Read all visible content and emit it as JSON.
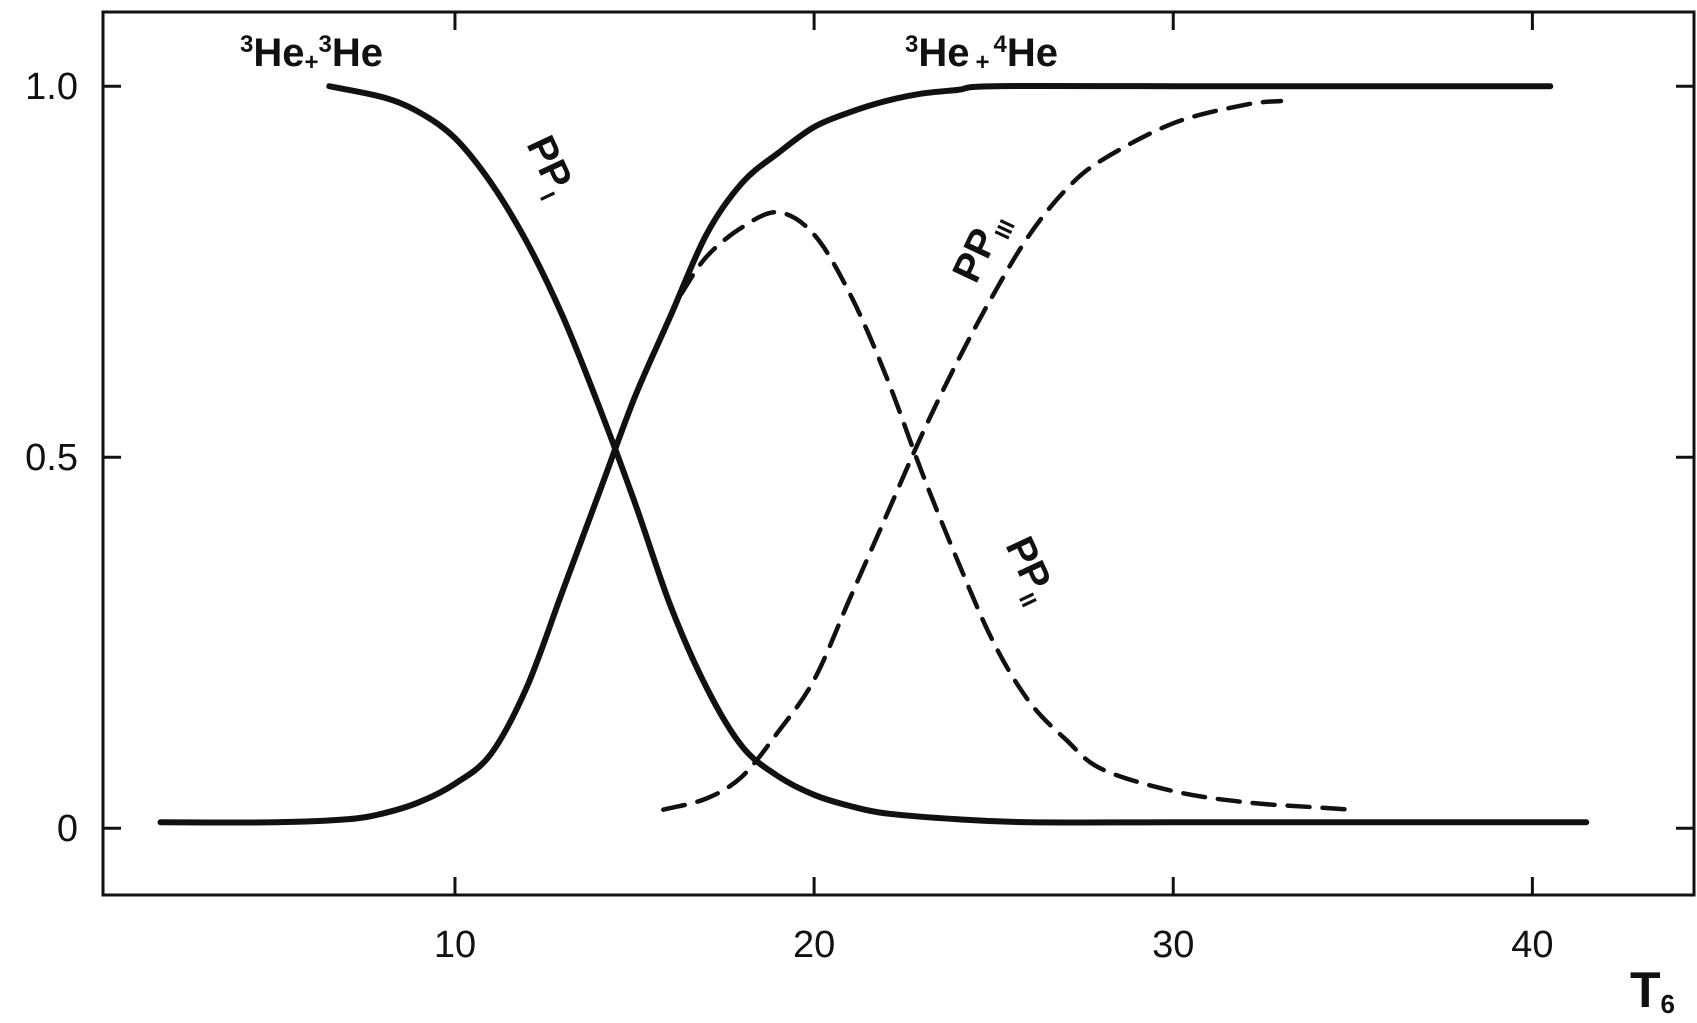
{
  "chart_data": {
    "type": "line",
    "xlabel": "T",
    "xlabel_sub": "6",
    "ylabel": "",
    "xlim": [
      0.2,
      44.5
    ],
    "ylim": [
      -0.09,
      1.1
    ],
    "xticks": [
      10,
      20,
      30,
      40
    ],
    "xtick_labels": [
      "10",
      "20",
      "30",
      "40"
    ],
    "yticks": [
      0,
      0.5,
      1.0
    ],
    "ytick_labels": [
      "0",
      "0.5",
      "1.0"
    ],
    "grid": false,
    "legend": "none",
    "top_labels": {
      "he3he3": {
        "sup1": "3",
        "a": "He",
        "plus": "+",
        "sup2": "3",
        "b": "He"
      },
      "he3he4": {
        "sup1": "3",
        "a": "He",
        "plus": "+",
        "sup2": "4",
        "b": "He"
      }
    },
    "series": [
      {
        "name": "PP",
        "numeral": "I",
        "style": "solid",
        "x": [
          6.5,
          8,
          9,
          10,
          11,
          12,
          13,
          14,
          15,
          16,
          17,
          18,
          19,
          20,
          21,
          22,
          24,
          26,
          30,
          35,
          40,
          41.5
        ],
        "y": [
          1.0,
          0.985,
          0.965,
          0.93,
          0.87,
          0.79,
          0.69,
          0.57,
          0.44,
          0.3,
          0.19,
          0.11,
          0.07,
          0.045,
          0.03,
          0.02,
          0.012,
          0.008,
          0.008,
          0.008,
          0.008,
          0.008
        ]
      },
      {
        "name": "",
        "numeral": "",
        "style": "solid",
        "x": [
          1.8,
          5,
          7,
          8,
          9,
          10,
          11,
          12,
          13,
          14,
          15,
          16,
          17,
          18,
          19,
          20,
          21,
          22,
          23,
          24,
          25,
          30,
          35,
          40.5
        ],
        "y": [
          0.008,
          0.008,
          0.012,
          0.02,
          0.035,
          0.06,
          0.1,
          0.19,
          0.32,
          0.45,
          0.58,
          0.69,
          0.8,
          0.87,
          0.91,
          0.945,
          0.965,
          0.98,
          0.99,
          0.995,
          1.0,
          1.0,
          1.0,
          1.0
        ]
      },
      {
        "name": "PP",
        "numeral": "II",
        "style": "dashed",
        "x": [
          16.3,
          17,
          18,
          19,
          20,
          21,
          22,
          23,
          24,
          25,
          26,
          27,
          28,
          30,
          32,
          34,
          35
        ],
        "y": [
          0.72,
          0.77,
          0.81,
          0.83,
          0.8,
          0.72,
          0.61,
          0.48,
          0.36,
          0.25,
          0.17,
          0.12,
          0.08,
          0.05,
          0.035,
          0.028,
          0.025
        ]
      },
      {
        "name": "PP",
        "numeral": "III",
        "style": "dashed",
        "x": [
          15.8,
          17,
          18,
          19,
          20,
          21,
          22,
          23,
          24,
          25,
          26,
          27,
          28,
          30,
          32,
          33
        ],
        "y": [
          0.025,
          0.04,
          0.07,
          0.13,
          0.2,
          0.31,
          0.42,
          0.53,
          0.63,
          0.72,
          0.8,
          0.86,
          0.9,
          0.95,
          0.975,
          0.98
        ]
      }
    ]
  }
}
